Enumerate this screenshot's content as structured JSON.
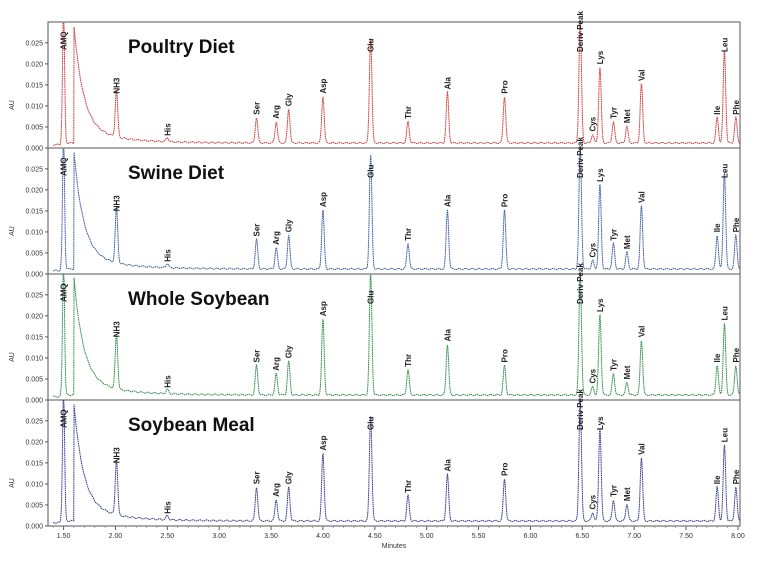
{
  "chart_data": {
    "type": "line",
    "x_axis": {
      "label": "Minutes",
      "range": [
        1.35,
        8.02
      ],
      "ticks": [
        "1.50",
        "2.00",
        "2.50",
        "3.00",
        "3.50",
        "4.00",
        "4.50",
        "5.00",
        "5.50",
        "6.00",
        "6.50",
        "7.00",
        "7.50",
        "8.00"
      ]
    },
    "y_axis": {
      "label": "AU",
      "range": [
        0.0,
        0.029
      ],
      "ticks": [
        "0.000",
        "0.005",
        "0.010",
        "0.015",
        "0.020",
        "0.025"
      ]
    },
    "peak_labels": [
      "AMQ",
      "NH3",
      "His",
      "Ser",
      "Arg",
      "Gly",
      "Asp",
      "Glu",
      "Thr",
      "Ala",
      "Pro",
      "Deriv Peak",
      "Cys",
      "Lys",
      "Tyr",
      "Met",
      "Val",
      "Ile",
      "Leu",
      "Phe"
    ],
    "peak_times": [
      1.5,
      2.01,
      2.5,
      3.36,
      3.55,
      3.67,
      4.0,
      4.46,
      4.82,
      5.2,
      5.75,
      6.48,
      6.6,
      6.67,
      6.8,
      6.93,
      7.07,
      7.8,
      7.87,
      7.98
    ],
    "series": [
      {
        "name": "Poultry Diet",
        "color": "#c93a3a",
        "heights": [
          0.031,
          0.011,
          0.001,
          0.006,
          0.005,
          0.008,
          0.011,
          0.025,
          0.005,
          0.012,
          0.011,
          0.029,
          0.002,
          0.018,
          0.005,
          0.004,
          0.014,
          0.006,
          0.022,
          0.006
        ]
      },
      {
        "name": "Swine Diet",
        "color": "#3a5a9c",
        "heights": [
          0.031,
          0.013,
          0.001,
          0.007,
          0.005,
          0.008,
          0.014,
          0.027,
          0.006,
          0.014,
          0.014,
          0.029,
          0.002,
          0.02,
          0.006,
          0.004,
          0.015,
          0.008,
          0.023,
          0.008
        ]
      },
      {
        "name": "Whole Soybean",
        "color": "#2f8a4a",
        "heights": [
          0.031,
          0.013,
          0.001,
          0.007,
          0.005,
          0.008,
          0.018,
          0.029,
          0.006,
          0.012,
          0.007,
          0.029,
          0.002,
          0.019,
          0.005,
          0.003,
          0.013,
          0.007,
          0.017,
          0.007
        ]
      },
      {
        "name": "Soybean Meal",
        "color": "#333a8a",
        "heights": [
          0.031,
          0.013,
          0.001,
          0.008,
          0.005,
          0.008,
          0.016,
          0.025,
          0.006,
          0.011,
          0.01,
          0.029,
          0.002,
          0.022,
          0.005,
          0.004,
          0.015,
          0.008,
          0.018,
          0.008
        ]
      }
    ]
  }
}
